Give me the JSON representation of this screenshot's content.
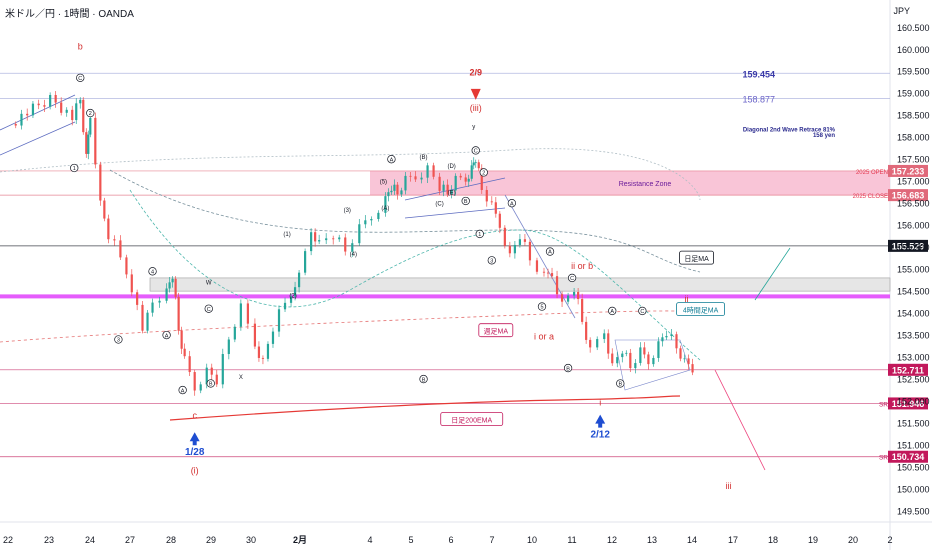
{
  "header": {
    "symbol": "米ドル／円 · 1時間 · OANDA",
    "currency": "JPY"
  },
  "chart_data": {
    "type": "candlestick",
    "ylim": [
      149.25,
      161.12
    ],
    "y_ticks": [
      149.5,
      150.0,
      150.5,
      151.0,
      151.5,
      152.0,
      152.5,
      153.0,
      153.5,
      154.0,
      154.5,
      155.0,
      155.5,
      156.0,
      156.5,
      157.0,
      157.5,
      158.0,
      158.5,
      159.0,
      159.5,
      160.0,
      160.5
    ],
    "x_ticks": [
      "22",
      "23",
      "24",
      "27",
      "28",
      "29",
      "30",
      "2月",
      "4",
      "5",
      "6",
      "7",
      "10",
      "11",
      "12",
      "13",
      "14",
      "17",
      "18",
      "19",
      "20",
      "2"
    ],
    "price_path": [
      {
        "d": 0.0,
        "p": 158.3
      },
      {
        "d": 1.0,
        "p": 158.9
      },
      {
        "d": 1.55,
        "p": 158.45
      },
      {
        "d": 1.75,
        "p": 158.85
      },
      {
        "d": 1.9,
        "p": 157.5
      },
      {
        "d": 2.0,
        "p": 158.5
      },
      {
        "d": 2.25,
        "p": 156.5
      },
      {
        "d": 2.45,
        "p": 155.8
      },
      {
        "d": 2.9,
        "p": 155.0
      },
      {
        "d": 3.3,
        "p": 153.6
      },
      {
        "d": 3.55,
        "p": 154.3
      },
      {
        "d": 3.9,
        "p": 154.5
      },
      {
        "d": 4.05,
        "p": 154.9
      },
      {
        "d": 4.2,
        "p": 153.6
      },
      {
        "d": 4.35,
        "p": 152.9
      },
      {
        "d": 4.6,
        "p": 152.3
      },
      {
        "d": 4.9,
        "p": 152.7
      },
      {
        "d": 5.15,
        "p": 152.5
      },
      {
        "d": 5.45,
        "p": 153.4
      },
      {
        "d": 5.75,
        "p": 154.1
      },
      {
        "d": 6.1,
        "p": 153.3
      },
      {
        "d": 6.3,
        "p": 152.9
      },
      {
        "d": 6.55,
        "p": 153.7
      },
      {
        "d": 7.0,
        "p": 154.5
      },
      {
        "d": 7.2,
        "p": 154.8
      },
      {
        "d": 7.5,
        "p": 155.9
      },
      {
        "d": 7.7,
        "p": 155.6
      },
      {
        "d": 8.05,
        "p": 155.8
      },
      {
        "d": 8.35,
        "p": 155.4
      },
      {
        "d": 8.7,
        "p": 155.9
      },
      {
        "d": 9.0,
        "p": 156.2
      },
      {
        "d": 9.35,
        "p": 156.6
      },
      {
        "d": 9.5,
        "p": 156.9
      },
      {
        "d": 9.65,
        "p": 156.7
      },
      {
        "d": 9.85,
        "p": 157.0
      },
      {
        "d": 10.1,
        "p": 157.1
      },
      {
        "d": 10.4,
        "p": 157.3
      },
      {
        "d": 10.7,
        "p": 156.9
      },
      {
        "d": 10.9,
        "p": 156.7
      },
      {
        "d": 11.1,
        "p": 157.0
      },
      {
        "d": 11.35,
        "p": 157.05
      },
      {
        "d": 11.5,
        "p": 157.3
      },
      {
        "d": 11.6,
        "p": 157.55
      },
      {
        "d": 11.75,
        "p": 156.8
      },
      {
        "d": 12.0,
        "p": 156.4
      },
      {
        "d": 12.2,
        "p": 156.0
      },
      {
        "d": 12.45,
        "p": 155.3
      },
      {
        "d": 12.7,
        "p": 155.8
      },
      {
        "d": 12.95,
        "p": 155.2
      },
      {
        "d": 13.3,
        "p": 154.8
      },
      {
        "d": 13.5,
        "p": 154.9
      },
      {
        "d": 13.75,
        "p": 154.2
      },
      {
        "d": 14.05,
        "p": 154.6
      },
      {
        "d": 14.25,
        "p": 153.8
      },
      {
        "d": 14.45,
        "p": 153.1
      },
      {
        "d": 14.8,
        "p": 153.6
      },
      {
        "d": 15.0,
        "p": 152.8
      },
      {
        "d": 15.25,
        "p": 153.2
      },
      {
        "d": 15.45,
        "p": 152.75
      },
      {
        "d": 15.7,
        "p": 153.1
      },
      {
        "d": 15.9,
        "p": 152.9
      },
      {
        "d": 16.15,
        "p": 153.3
      },
      {
        "d": 16.35,
        "p": 153.6
      },
      {
        "d": 16.6,
        "p": 153.2
      },
      {
        "d": 16.8,
        "p": 152.85
      },
      {
        "d": 17.0,
        "p": 152.711
      }
    ],
    "h_levels": [
      {
        "price": 159.454,
        "label": "159.454",
        "kind": "text",
        "color": "#3a3aa8"
      },
      {
        "price": 158.877,
        "label": "158.877",
        "kind": "text",
        "color": "#6a63c8"
      },
      {
        "price": 157.233,
        "label": "157.233",
        "kind": "box",
        "color": "#e0697a"
      },
      {
        "price": 156.683,
        "label": "156.683",
        "kind": "box",
        "color": "#e0697a"
      },
      {
        "price": 155.529,
        "label": "155.529",
        "kind": "box",
        "color": "#131722"
      },
      {
        "price": 152.711,
        "label": "152.711",
        "kind": "box",
        "color": "#c2185b"
      },
      {
        "price": 151.946,
        "label": "151.946",
        "kind": "box",
        "color": "#c2185b"
      },
      {
        "price": 150.734,
        "label": "150.734",
        "kind": "box",
        "color": "#c2185b"
      }
    ],
    "zones": [
      {
        "from": 156.683,
        "to": 157.233,
        "color": "#f8bbd0",
        "label": "Resistance Zone"
      },
      {
        "from": 154.5,
        "to": 154.8,
        "color": "#e6e6e6",
        "label": "W"
      }
    ],
    "magenta_level": 154.38,
    "annotations": [
      {
        "text": "2025 OPEN",
        "price": 157.233,
        "color": "#e53950"
      },
      {
        "text": "2025 CLOSE",
        "price": 156.683,
        "color": "#e53950"
      },
      {
        "text": "Diagonal 2nd Wave Retrace 81%",
        "price": 158.2,
        "color": "#2b2b8e"
      },
      {
        "text": "158 yen",
        "price": 158.07,
        "color": "#2b2b8e"
      },
      {
        "text": "SR",
        "price": 151.946,
        "color": "#c2185b"
      },
      {
        "text": "SR",
        "price": 150.734,
        "color": "#c2185b"
      }
    ],
    "wave_labels": {
      "red": [
        {
          "t": "b",
          "d": 1.75,
          "p": 160.0
        },
        {
          "t": "2/9",
          "d": 11.6,
          "p": 159.4
        },
        {
          "t": "(iii)",
          "d": 11.6,
          "p": 158.6
        },
        {
          "t": "ii or b",
          "d": 14.25,
          "p": 155.0
        },
        {
          "t": "i or a",
          "d": 13.3,
          "p": 153.4
        },
        {
          "t": "c",
          "d": 4.6,
          "p": 151.6
        },
        {
          "t": "(i)",
          "d": 4.6,
          "p": 150.35
        },
        {
          "t": "ii",
          "d": 16.85,
          "p": 154.25
        },
        {
          "t": "iii",
          "d": 17.9,
          "p": 150.0
        },
        {
          "t": "i",
          "d": 14.7,
          "p": 151.9
        }
      ],
      "blue": [
        {
          "t": "1/28",
          "d": 4.6,
          "p": 150.95
        },
        {
          "t": "2/12",
          "d": 14.7,
          "p": 151.35
        }
      ],
      "circled": [
        {
          "t": "C",
          "d": 1.75,
          "p": 159.35
        },
        {
          "t": "2",
          "d": 2.0,
          "p": 158.55
        },
        {
          "t": "1",
          "d": 1.6,
          "p": 157.3
        },
        {
          "t": "4",
          "d": 3.55,
          "p": 154.95
        },
        {
          "t": "3",
          "d": 2.7,
          "p": 153.4
        },
        {
          "t": "A",
          "d": 4.3,
          "p": 152.25
        },
        {
          "t": "B",
          "d": 5.0,
          "p": 152.4
        },
        {
          "t": "A",
          "d": 3.9,
          "p": 153.5
        },
        {
          "t": "C",
          "d": 4.95,
          "p": 154.1
        },
        {
          "t": "C",
          "d": 11.6,
          "p": 157.7
        },
        {
          "t": "2",
          "d": 11.8,
          "p": 157.2
        },
        {
          "t": "B",
          "d": 11.35,
          "p": 156.55
        },
        {
          "t": "1",
          "d": 11.7,
          "p": 155.8
        },
        {
          "t": "A",
          "d": 12.5,
          "p": 156.5
        },
        {
          "t": "3",
          "d": 12.0,
          "p": 155.2
        },
        {
          "t": "A",
          "d": 13.45,
          "p": 155.4
        },
        {
          "t": "5",
          "d": 13.25,
          "p": 154.15
        },
        {
          "t": "C",
          "d": 14.0,
          "p": 154.8
        },
        {
          "t": "B",
          "d": 13.9,
          "p": 152.75
        },
        {
          "t": "A",
          "d": 15.0,
          "p": 154.05
        },
        {
          "t": "C",
          "d": 15.75,
          "p": 154.05
        },
        {
          "t": "B",
          "d": 15.2,
          "p": 152.4
        },
        {
          "t": "A",
          "d": 9.5,
          "p": 157.5
        },
        {
          "t": "B",
          "d": 10.3,
          "p": 152.5
        }
      ],
      "dark": [
        {
          "t": "y",
          "d": 11.55,
          "p": 158.2
        },
        {
          "t": "(B)",
          "d": 10.3,
          "p": 157.5
        },
        {
          "t": "(D)",
          "d": 11.0,
          "p": 157.3
        },
        {
          "t": "(5)",
          "d": 9.3,
          "p": 156.95
        },
        {
          "t": "(3)",
          "d": 8.4,
          "p": 156.3
        },
        {
          "t": "(A)",
          "d": 9.35,
          "p": 156.35
        },
        {
          "t": "(C)",
          "d": 10.7,
          "p": 156.45
        },
        {
          "t": "(E)",
          "d": 11.0,
          "p": 156.7
        },
        {
          "t": "(1)",
          "d": 6.9,
          "p": 155.75
        },
        {
          "t": "(4)",
          "d": 8.55,
          "p": 155.3
        },
        {
          "t": "(2)",
          "d": 7.05,
          "p": 154.35
        },
        {
          "t": "W",
          "d": 4.95,
          "p": 154.65
        },
        {
          "t": "X",
          "d": 5.75,
          "p": 152.5
        }
      ]
    },
    "callouts": [
      {
        "t": "日足MA",
        "d": 17.1,
        "p": 155.25,
        "color": "#131722"
      },
      {
        "t": "4時間足MA",
        "d": 17.2,
        "p": 154.08,
        "color": "#0c7b93"
      },
      {
        "t": "週足MA",
        "d": 12.1,
        "p": 153.6,
        "color": "#c2185b"
      },
      {
        "t": "日足200EMA",
        "d": 11.5,
        "p": 151.58,
        "color": "#c2185b"
      }
    ]
  }
}
